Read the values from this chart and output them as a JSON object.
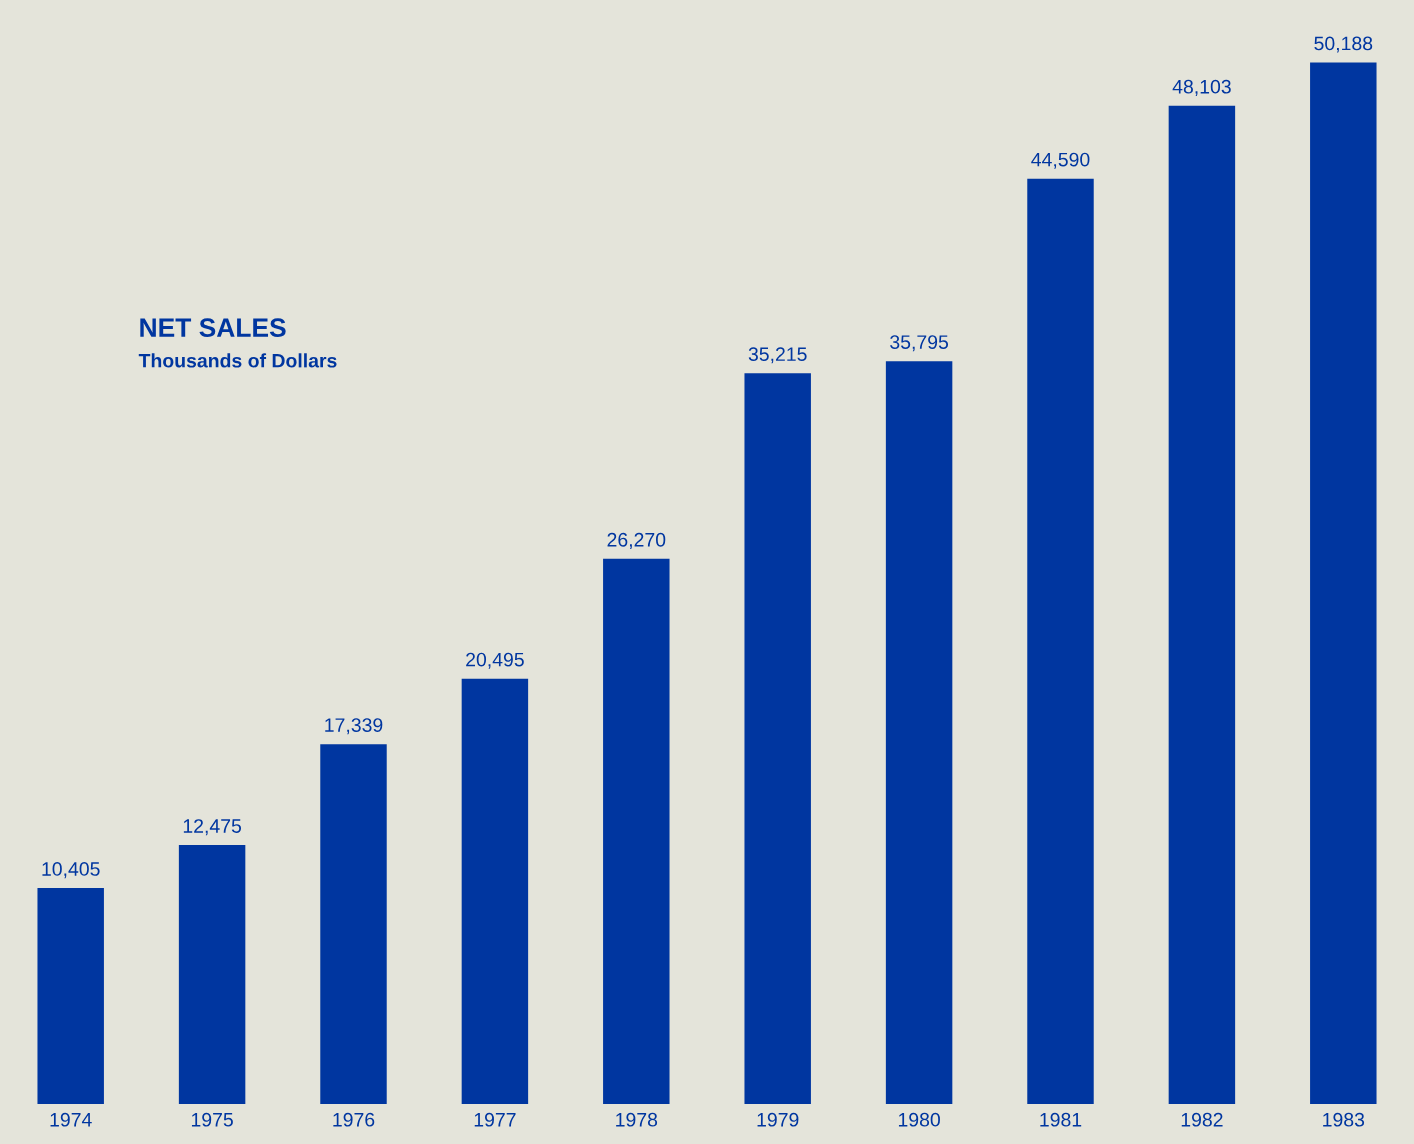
{
  "chart_data": {
    "type": "bar",
    "title": "NET SALES",
    "subtitle": "Thousands of Dollars",
    "categories": [
      "1974",
      "1975",
      "1976",
      "1977",
      "1978",
      "1979",
      "1980",
      "1981",
      "1982",
      "1983"
    ],
    "values": [
      10405,
      12475,
      17339,
      20495,
      26270,
      35215,
      35795,
      44590,
      48103,
      50188
    ],
    "value_labels": [
      "10,405",
      "12,475",
      "17,339",
      "20,495",
      "26,270",
      "35,215",
      "35,795",
      "44,590",
      "48,103",
      "50,188"
    ],
    "color": "#0036a0",
    "grid": false,
    "legend": false
  }
}
